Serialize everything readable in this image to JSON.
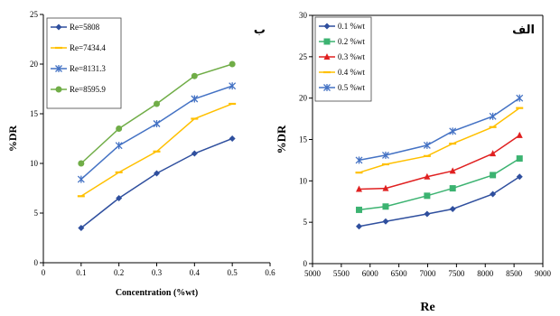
{
  "chart_data": [
    {
      "type": "line",
      "panel_label": "ب",
      "xlabel": "Concentration (%wt)",
      "ylabel": "%DR",
      "xlim": [
        0,
        0.6
      ],
      "ylim": [
        0,
        25
      ],
      "xticks": [
        0,
        0.1,
        0.2,
        0.3,
        0.4,
        0.5,
        0.6
      ],
      "yticks": [
        0,
        5,
        10,
        15,
        20,
        25
      ],
      "legend_position": "top-left",
      "x": [
        0.1,
        0.2,
        0.3,
        0.4,
        0.5
      ],
      "series": [
        {
          "name": "Re=5808",
          "color": "#2f4f9e",
          "marker": "diamond",
          "values": [
            3.5,
            6.5,
            9.0,
            11.0,
            12.5
          ]
        },
        {
          "name": "Re=7434.4",
          "color": "#ffc000",
          "marker": "dash",
          "values": [
            6.7,
            9.1,
            11.2,
            14.5,
            16.0
          ]
        },
        {
          "name": "Re=8131.3",
          "color": "#4472c4",
          "marker": "star",
          "values": [
            8.4,
            11.8,
            14.0,
            16.5,
            17.8
          ]
        },
        {
          "name": "Re=8595.9",
          "color": "#70ad47",
          "marker": "circle",
          "values": [
            10.0,
            13.5,
            16.0,
            18.8,
            20.0
          ]
        }
      ]
    },
    {
      "type": "line",
      "panel_label": "الف",
      "xlabel": "Re",
      "ylabel": "%DR",
      "xlim": [
        5000,
        9000
      ],
      "ylim": [
        0,
        30
      ],
      "xticks": [
        5000,
        5500,
        6000,
        6500,
        7000,
        7500,
        8000,
        8500,
        9000
      ],
      "yticks": [
        0,
        5,
        10,
        15,
        20,
        25,
        30
      ],
      "legend_position": "top-left",
      "x": [
        5808,
        6270,
        6990,
        7434.4,
        8131.3,
        8595.9
      ],
      "series": [
        {
          "name": "0.1 %wt",
          "color": "#2f4f9e",
          "marker": "diamond",
          "values": [
            4.5,
            5.1,
            6.0,
            6.6,
            8.4,
            10.5
          ]
        },
        {
          "name": "0.2 %wt",
          "color": "#3cb371",
          "marker": "square",
          "values": [
            6.5,
            6.9,
            8.2,
            9.1,
            10.7,
            12.7
          ]
        },
        {
          "name": "0.3 %wt",
          "color": "#e02020",
          "marker": "triangle",
          "values": [
            9.0,
            9.1,
            10.5,
            11.2,
            13.3,
            15.5
          ]
        },
        {
          "name": "0.4 %wt",
          "color": "#ffc000",
          "marker": "dash",
          "values": [
            11.0,
            12.0,
            13.0,
            14.5,
            16.5,
            18.8
          ]
        },
        {
          "name": "0.5 %wt",
          "color": "#4472c4",
          "marker": "star",
          "values": [
            12.5,
            13.1,
            14.3,
            16.0,
            17.8,
            20.0
          ]
        }
      ]
    }
  ]
}
